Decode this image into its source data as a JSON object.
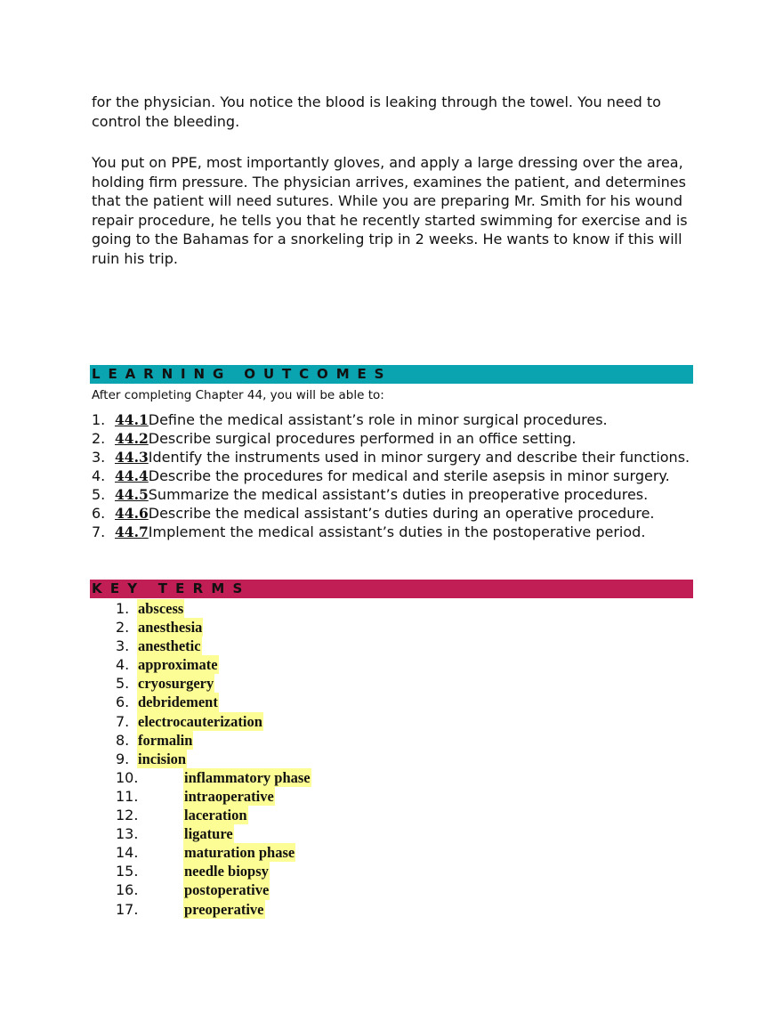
{
  "intro_paragraphs": [
    "for the physician. You notice the blood is leaking through the towel. You need to control the bleeding.",
    "You put on PPE, most importantly gloves, and apply a large dressing over the area, holding firm pressure. The physician arrives, examines the patient, and determines that the patient will need sutures. While you are preparing Mr. Smith for his wound repair procedure, he tells you that he recently started swimming for exercise and is going to the Bahamas for a snorkeling trip in 2 weeks. He wants to know if this will ruin his trip."
  ],
  "learning_outcomes": {
    "heading": "LEARNING OUTCOMES",
    "bar_color": "#0aa3b0",
    "intro": "After completing Chapter 44, you will be able to:",
    "items": [
      {
        "num": "1.",
        "code": "44.1",
        "text": "Define the medical assistant’s role in minor surgical procedures."
      },
      {
        "num": "2.",
        "code": "44.2",
        "text": "Describe surgical procedures performed in an office setting."
      },
      {
        "num": "3.",
        "code": "44.3",
        "text": "Identify the instruments used in minor surgery and describe their functions."
      },
      {
        "num": "4.",
        "code": "44.4",
        "text": "Describe the procedures for medical and sterile asepsis in minor surgery."
      },
      {
        "num": "5.",
        "code": "44.5",
        "text": "Summarize the medical assistant’s duties in preoperative procedures."
      },
      {
        "num": "6.",
        "code": "44.6",
        "text": "Describe the medical assistant’s duties during an operative procedure."
      },
      {
        "num": "7.",
        "code": "44.7",
        "text": "Implement the medical assistant’s duties in the postoperative period."
      }
    ]
  },
  "key_terms": {
    "heading": "KEY TERMS",
    "bar_color": "#c21e56",
    "highlight_color": "#fdfd96",
    "items": [
      {
        "num": "1.",
        "term": "abscess"
      },
      {
        "num": "2.",
        "term": "anesthesia"
      },
      {
        "num": "3.",
        "term": "anesthetic"
      },
      {
        "num": "4.",
        "term": "approximate"
      },
      {
        "num": "5.",
        "term": "cryosurgery"
      },
      {
        "num": "6.",
        "term": "debridement"
      },
      {
        "num": "7.",
        "term": "electrocauterization"
      },
      {
        "num": "8.",
        "term": "formalin"
      },
      {
        "num": "9.",
        "term": "incision"
      },
      {
        "num": "10.",
        "term": "inflammatory phase"
      },
      {
        "num": "11.",
        "term": "intraoperative"
      },
      {
        "num": "12.",
        "term": "laceration"
      },
      {
        "num": "13.",
        "term": "ligature"
      },
      {
        "num": "14.",
        "term": "maturation phase"
      },
      {
        "num": "15.",
        "term": "needle biopsy"
      },
      {
        "num": "16.",
        "term": "postoperative"
      },
      {
        "num": "17.",
        "term": "preoperative"
      }
    ]
  }
}
